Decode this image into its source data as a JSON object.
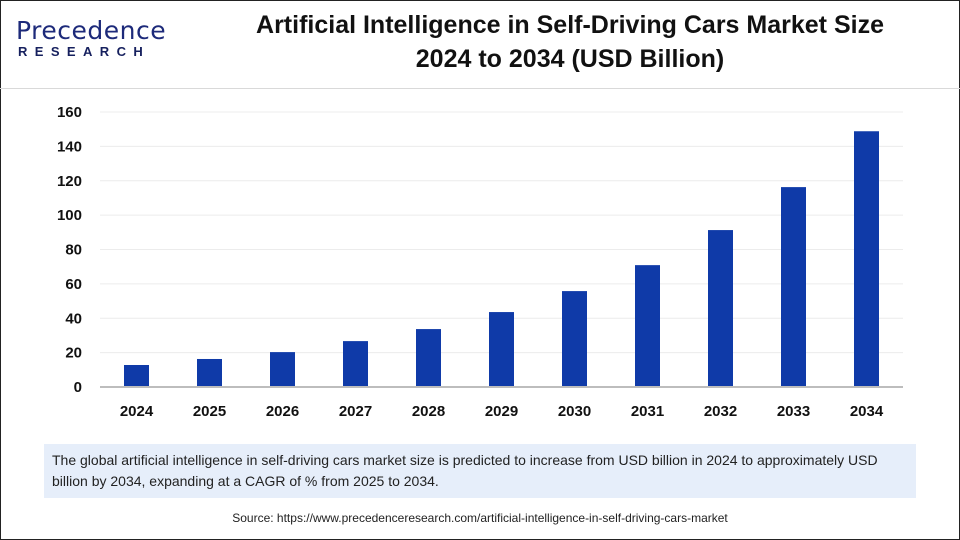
{
  "logo": {
    "line1": "Precedence",
    "line2": "RESEARCH"
  },
  "title_line1": "Artificial Intelligence in Self-Driving Cars Market Size",
  "title_line2": "2024 to 2034 (USD Billion)",
  "chart_data": {
    "type": "bar",
    "title": "Artificial Intelligence in Self-Driving Cars Market Size 2024 to 2034 (USD Billion)",
    "categories": [
      "2024",
      "2025",
      "2026",
      "2027",
      "2028",
      "2029",
      "2030",
      "2031",
      "2032",
      "2033",
      "2034"
    ],
    "values": [
      12.8,
      16.3,
      20.3,
      26.7,
      33.7,
      43.6,
      55.8,
      70.9,
      91.3,
      116.3,
      148.8
    ],
    "yticks": [
      "0",
      "20",
      "40",
      "60",
      "80",
      "100",
      "120",
      "140",
      "160"
    ],
    "ylim": [
      0,
      160
    ],
    "grid": true,
    "bar_color": "#0f3aa8",
    "xlabel": "",
    "ylabel": ""
  },
  "note": "The global artificial intelligence in self-driving cars market size is predicted to increase from USD billion in 2024 to approximately USD billion by 2034, expanding at a CAGR of % from 2025 to 2034.",
  "source": "Source: https://www.precedenceresearch.com/artificial-intelligence-in-self-driving-cars-market"
}
